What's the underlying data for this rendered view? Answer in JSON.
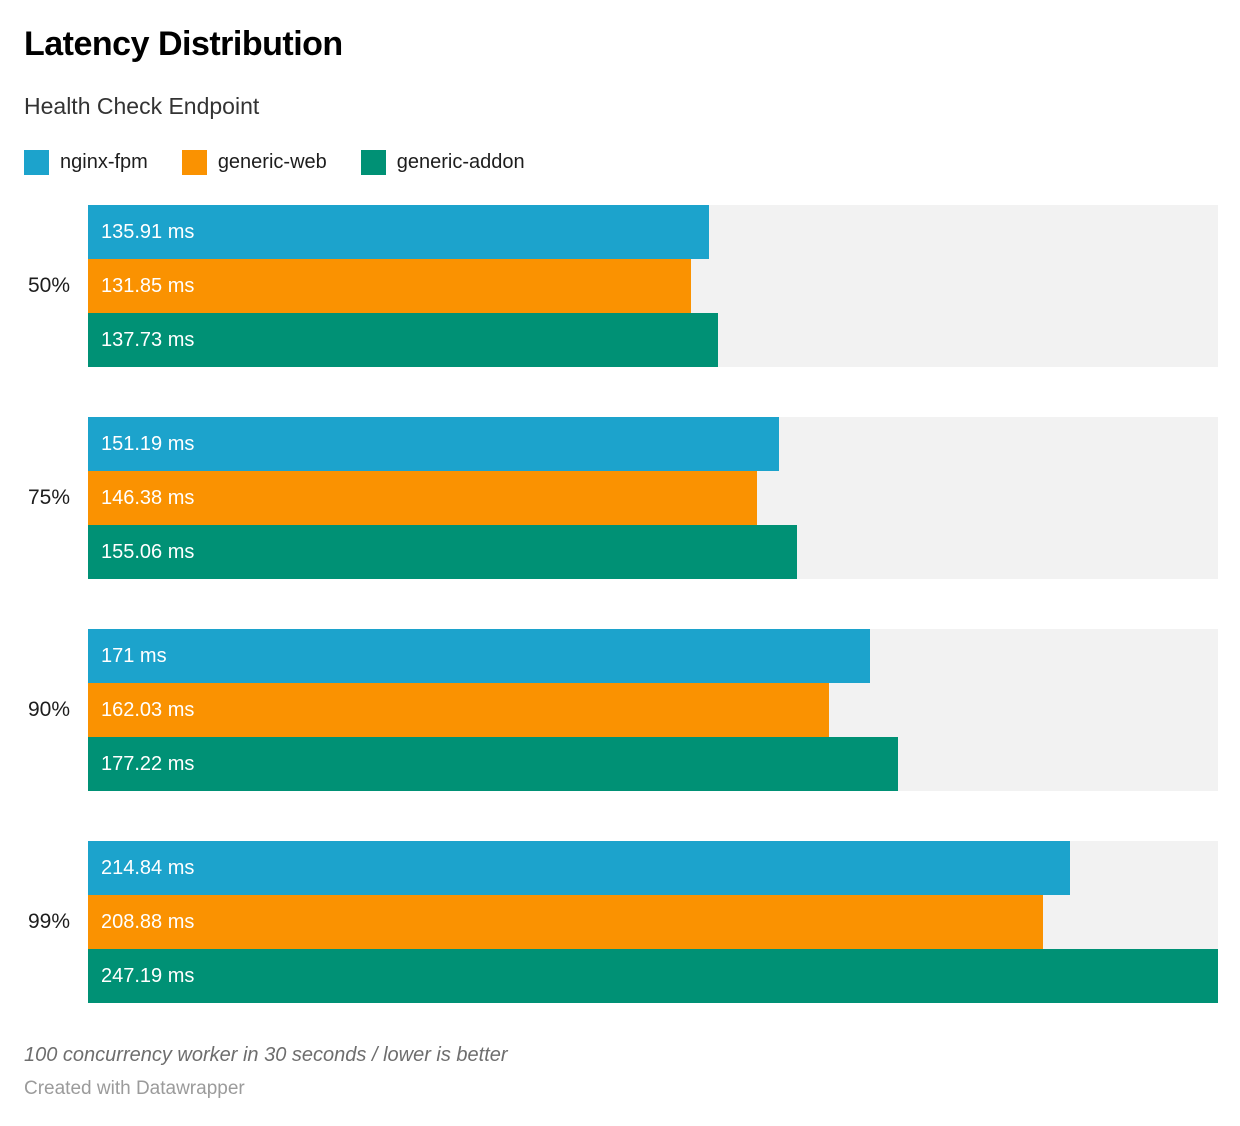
{
  "header": {
    "title": "Latency Distribution",
    "subtitle": "Health Check Endpoint"
  },
  "chart_data": {
    "type": "bar",
    "orientation": "horizontal",
    "categories": [
      "50%",
      "75%",
      "90%",
      "99%"
    ],
    "series": [
      {
        "name": "nginx-fpm",
        "color": "#1CA3CC",
        "values": [
          135.91,
          151.19,
          171,
          214.84
        ],
        "value_labels": [
          "135.91 ms",
          "151.19 ms",
          "171 ms",
          "214.84 ms"
        ]
      },
      {
        "name": "generic-web",
        "color": "#FA9201",
        "values": [
          131.85,
          146.38,
          162.03,
          208.88
        ],
        "value_labels": [
          "131.85 ms",
          "146.38 ms",
          "162.03 ms",
          "208.88 ms"
        ]
      },
      {
        "name": "generic-addon",
        "color": "#009175",
        "values": [
          137.73,
          155.06,
          177.22,
          247.19
        ],
        "value_labels": [
          "137.73 ms",
          "155.06 ms",
          "177.22 ms",
          "247.19 ms"
        ]
      }
    ],
    "value_suffix": " ms",
    "xmin": 0,
    "xmax": 247.19,
    "track_color": "#F2F2F2",
    "grid": false,
    "legend_position": "top",
    "lower_is_better": true
  },
  "footer": {
    "note": "100 concurrency worker in 30 seconds / lower is better",
    "attribution": "Created with Datawrapper"
  }
}
